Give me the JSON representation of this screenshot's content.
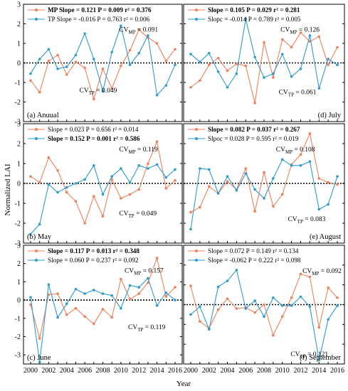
{
  "figure": {
    "ylabel": "Normalized LAI",
    "xlabel": "Year",
    "years": [
      2000,
      2001,
      2002,
      2003,
      2004,
      2005,
      2006,
      2007,
      2008,
      2009,
      2010,
      2011,
      2012,
      2013,
      2014,
      2015,
      2016
    ],
    "xticks": [
      "2000",
      "2002",
      "2004",
      "2006",
      "2008",
      "2010",
      "2012",
      "2014",
      "2016"
    ],
    "yticks": [
      "-3",
      "-2",
      "-1",
      "0",
      "1",
      "2",
      "3"
    ],
    "colors": {
      "mp": "#F0805A",
      "tp": "#2E9BD0",
      "zero_line": "#000000"
    }
  },
  "chart_data": [
    {
      "type": "line",
      "panel_label": "(a) Anuual",
      "label_pos": "bottom-left",
      "ylim": [
        -3,
        3
      ],
      "legend": [
        {
          "label": "MP Slope",
          "stats": "= 0.121  P = 0.009  r² = 0.376",
          "bold": true
        },
        {
          "label": "TP Slope",
          "stats": "= -0.016  P = 0.763  r² = 0.006",
          "bold": false
        }
      ],
      "annotations": [
        {
          "text": "CV",
          "sub": "MP",
          "rest": " = 0.091",
          "at": [
            2009.8,
            1.6
          ]
        },
        {
          "text": "CV",
          "sub": "TP",
          "rest": " = 0.049",
          "at": [
            2005.4,
            -1.5
          ]
        }
      ],
      "series": [
        {
          "name": "MP",
          "values": [
            -0.9,
            -1.5,
            0.1,
            0.4,
            -0.6,
            0.05,
            -0.25,
            -1.85,
            -0.3,
            -1.3,
            -0.15,
            0.65,
            1.7,
            1.3,
            1.0,
            0.1,
            0.7
          ]
        },
        {
          "name": "TP",
          "values": [
            -0.55,
            0.2,
            0.7,
            -0.3,
            -0.2,
            0.4,
            1.5,
            0.2,
            -1.45,
            0.55,
            1.9,
            -0.1,
            0.5,
            1.4,
            -1.65,
            -1.15,
            -0.1
          ]
        }
      ]
    },
    {
      "type": "line",
      "panel_label": "(d) July",
      "label_pos": "bottom-right",
      "ylim": [
        -3,
        3
      ],
      "legend": [
        {
          "label": "Slope",
          "stats": "= 0.105  P = 0.029  r² = 0.281",
          "bold": true
        },
        {
          "label": "Slopc",
          "stats": "= -0.014  P = 0.789  r² = 0.005",
          "bold": false
        }
      ],
      "annotations": [
        {
          "text": "CV",
          "sub": "MP",
          "rest": " = 0.126",
          "at": [
            2009.8,
            1.6
          ]
        },
        {
          "text": "CV",
          "sub": "TP",
          "rest": " = 0.061",
          "at": [
            2009.6,
            -1.6
          ]
        }
      ],
      "series": [
        {
          "name": "MP",
          "values": [
            -1.25,
            -0.9,
            -0.1,
            0.25,
            -0.4,
            -0.05,
            -0.15,
            -2.05,
            1.05,
            -0.75,
            1.2,
            0.8,
            1.55,
            1.1,
            1.35,
            -0.1,
            0.8
          ]
        },
        {
          "name": "TP",
          "values": [
            0.45,
            0.05,
            0.5,
            -0.45,
            -1.25,
            -0.55,
            2.25,
            0.3,
            -0.75,
            -0.55,
            0.45,
            -0.7,
            -0.3,
            1.4,
            -1.3,
            0.2,
            -0.1
          ]
        }
      ]
    },
    {
      "type": "line",
      "panel_label": "(b) May",
      "label_pos": "bottom-left",
      "ylim": [
        -3,
        3
      ],
      "legend": [
        {
          "label": "Slope",
          "stats": "= 0.023  P = 0.656  r² = 0.014",
          "bold": false
        },
        {
          "label": "Slope",
          "stats": "= 0.152  P = 0.001  r² = 0.586",
          "bold": true
        }
      ],
      "annotations": [
        {
          "text": "CV",
          "sub": "MP",
          "rest": " = 0.119",
          "at": [
            2009.8,
            1.6
          ]
        },
        {
          "text": "CV",
          "sub": "TP",
          "rest": " = 0.049",
          "at": [
            2009.8,
            -1.6
          ]
        }
      ],
      "series": [
        {
          "name": "MP",
          "values": [
            0.35,
            0.05,
            1.3,
            0.65,
            -0.45,
            -0.9,
            -2.0,
            -0.65,
            -1.65,
            0.2,
            -0.75,
            -0.55,
            -0.3,
            1.0,
            2.1,
            -0.25,
            0.15
          ]
        },
        {
          "name": "TP",
          "values": [
            -2.55,
            -2.05,
            -0.05,
            -0.45,
            -0.2,
            0.0,
            0.2,
            0.9,
            -0.55,
            0.35,
            0.75,
            0.05,
            0.9,
            0.75,
            0.95,
            0.3,
            0.7
          ]
        }
      ]
    },
    {
      "type": "line",
      "panel_label": "(e) August",
      "label_pos": "bottom-right",
      "ylim": [
        -3,
        3
      ],
      "legend": [
        {
          "label": "Slope",
          "stats": "= 0.082  P = 0.037  r² = 0.267",
          "bold": true
        },
        {
          "label": "Slpoc",
          "stats": "= 0.028  P = 0.595  r² = 0.019",
          "bold": false
        }
      ],
      "annotations": [
        {
          "text": "CV",
          "sub": "MP",
          "rest": " = 0.108",
          "at": [
            2009.3,
            1.6
          ]
        },
        {
          "text": "CV",
          "sub": "TP",
          "rest": " = 0.083",
          "at": [
            2010.6,
            -1.9
          ]
        }
      ],
      "series": [
        {
          "name": "MP",
          "values": [
            -1.45,
            -1.2,
            -0.15,
            -0.5,
            0.1,
            -0.3,
            0.75,
            -1.4,
            0.55,
            -1.15,
            -0.55,
            0.95,
            1.45,
            2.5,
            0.25,
            0.05,
            -0.05
          ]
        },
        {
          "name": "TP",
          "values": [
            -2.3,
            0.75,
            0.7,
            -0.5,
            0.35,
            -0.35,
            0.5,
            -0.3,
            -0.75,
            0.25,
            1.2,
            0.9,
            0.9,
            1.1,
            -1.3,
            -1.05,
            0.35
          ]
        }
      ]
    },
    {
      "type": "line",
      "panel_label": "(c) June",
      "label_pos": "bottom-left",
      "ylim": [
        -3.5,
        3
      ],
      "legend": [
        {
          "label": "Slope",
          "stats": "= 0.117  P = 0.013  r² = 0.348",
          "bold": true
        },
        {
          "label": "Slope",
          "stats": "= 0.060  P = 0.237  r² = 0.092",
          "bold": false
        }
      ],
      "annotations": [
        {
          "text": "CV",
          "sub": "MP",
          "rest": " = 0.157",
          "at": [
            2010.4,
            1.5
          ]
        },
        {
          "text": "CV",
          "sub": "TP",
          "rest": " = 0.119",
          "at": [
            2010.8,
            -1.6
          ]
        }
      ],
      "series": [
        {
          "name": "MP",
          "values": [
            -0.25,
            -2.1,
            0.3,
            0.35,
            -0.8,
            -0.45,
            -0.9,
            -1.3,
            -0.5,
            -0.95,
            1.15,
            0.05,
            0.35,
            0.95,
            2.3,
            0.2,
            0.7
          ]
        },
        {
          "name": "TP",
          "values": [
            0.15,
            -3.4,
            0.85,
            -0.95,
            -0.2,
            0.6,
            0.35,
            0.55,
            0.35,
            0.25,
            -0.45,
            0.8,
            0.7,
            1.2,
            -0.3,
            0.4,
            0.0
          ]
        }
      ]
    },
    {
      "type": "line",
      "panel_label": "(f) September",
      "label_pos": "bottom-right",
      "ylim": [
        -3,
        3
      ],
      "legend": [
        {
          "label": "Slope",
          "stats": "= 0.072  P = 0.149  r² = 0.134",
          "bold": false
        },
        {
          "label": "Slope",
          "stats": "= -0.062  P = 0.222  r² = 0.098",
          "bold": false
        }
      ],
      "annotations": [
        {
          "text": "CV",
          "sub": "MP",
          "rest": " = 0.092",
          "at": [
            2012.2,
            1.6
          ]
        },
        {
          "text": "CV",
          "sub": "TP",
          "rest": " = 0.121",
          "at": [
            2010.9,
            -2.6
          ]
        }
      ],
      "series": [
        {
          "name": "MP",
          "values": [
            0.95,
            -0.85,
            -1.2,
            -0.25,
            0.3,
            -0.2,
            -0.15,
            -0.4,
            0.0,
            -1.55,
            -0.6,
            0.35,
            1.55,
            1.4,
            -1.15,
            0.85,
            0.35
          ]
        },
        {
          "name": "TP",
          "values": [
            -0.5,
            -0.1,
            -1.25,
            0.9,
            1.2,
            1.75,
            -0.2,
            0.2,
            -0.6,
            0.35,
            -0.05,
            -0.05,
            0.4,
            -0.1,
            -2.8,
            -0.75,
            -0.05
          ]
        }
      ]
    }
  ]
}
